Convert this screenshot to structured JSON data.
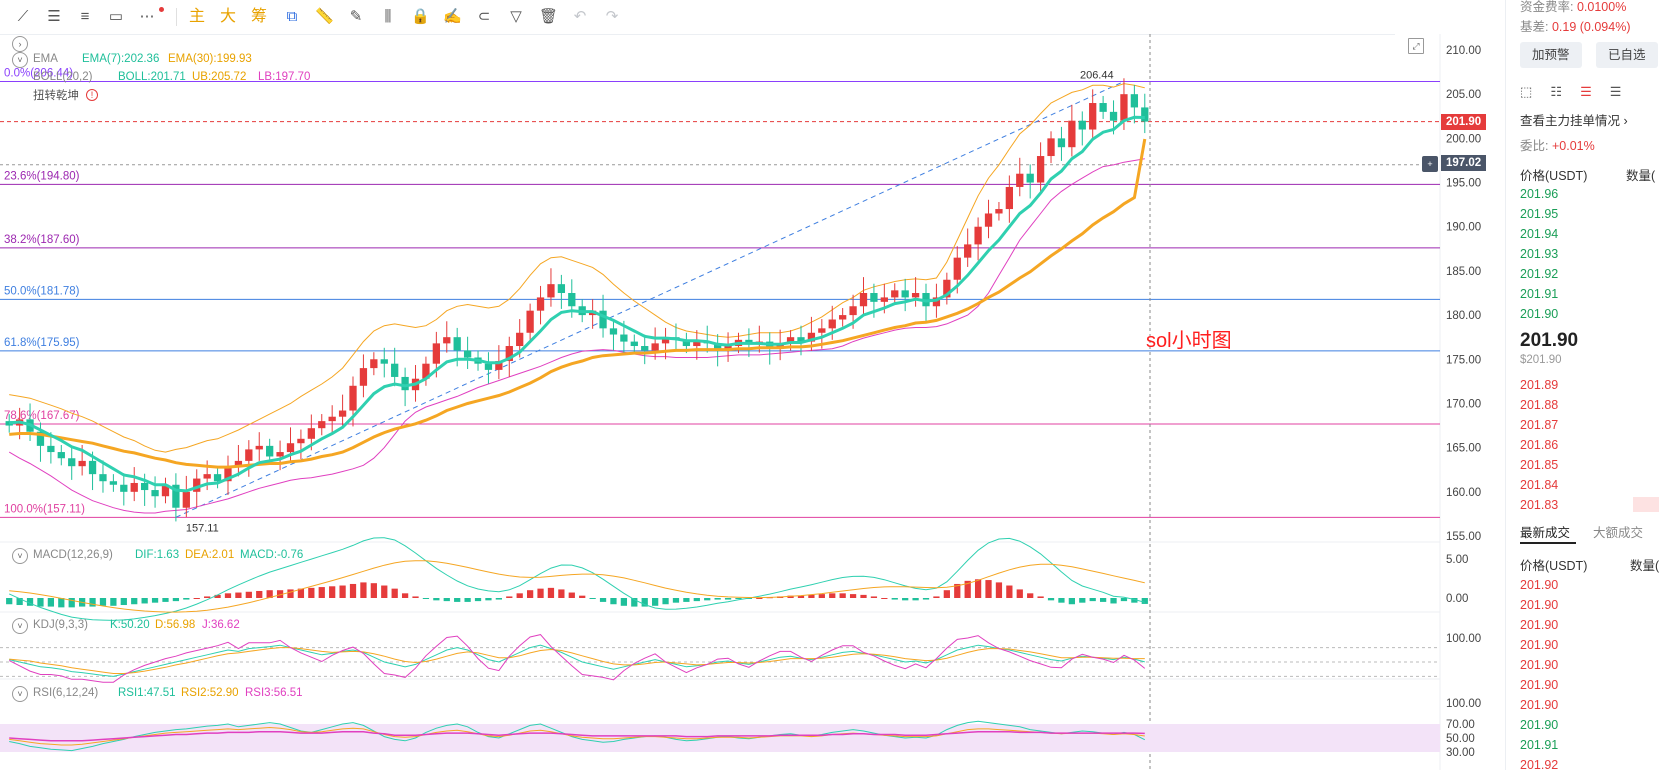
{
  "toolbar": {
    "tools": [
      {
        "name": "trend-line-icon",
        "glyph": "⟋"
      },
      {
        "name": "horizontal-lines-icon",
        "glyph": "☰"
      },
      {
        "name": "parallel-lines-icon",
        "glyph": "≡"
      },
      {
        "name": "rectangle-icon",
        "glyph": "▭"
      },
      {
        "name": "more-icon",
        "glyph": "⋯"
      }
    ],
    "main_label": "主",
    "big_label": "大",
    "chip_label": "筹",
    "right_tools": [
      {
        "name": "copy-icon",
        "glyph": "⧉"
      },
      {
        "name": "ruler-icon",
        "glyph": "📏"
      },
      {
        "name": "pen-icon",
        "glyph": "✎"
      },
      {
        "name": "candles-icon",
        "glyph": "⫼"
      },
      {
        "name": "lock-icon",
        "glyph": "🔒"
      },
      {
        "name": "edit-icon",
        "glyph": "✍"
      },
      {
        "name": "magnet-icon",
        "glyph": "⊂"
      },
      {
        "name": "filter-icon",
        "glyph": "▽"
      },
      {
        "name": "trash-icon",
        "glyph": "🗑"
      },
      {
        "name": "undo-icon",
        "glyph": "↶"
      },
      {
        "name": "redo-icon",
        "glyph": "↷"
      }
    ]
  },
  "indicators": {
    "ema_title": "EMA",
    "ema7": "EMA(7):202.36",
    "ema30": "EMA(30):199.93",
    "boll_title": "BOLL(20,2)",
    "boll_mid": "BOLL:201.71",
    "boll_ub": "UB:205.72",
    "boll_lb": "LB:197.70",
    "signal": "扭转乾坤",
    "macd_title": "MACD(12,26,9)",
    "macd_dif": "DIF:1.63",
    "macd_dea": "DEA:2.01",
    "macd_val": "MACD:-0.76",
    "kdj_title": "KDJ(9,3,3)",
    "kdj_k": "K:50.20",
    "kdj_d": "D:56.98",
    "kdj_j": "J:36.62",
    "rsi_title": "RSI(6,12,24)",
    "rsi1": "RSI1:47.51",
    "rsi2": "RSI2:52.90",
    "rsi3": "RSI3:56.51"
  },
  "fib_levels": [
    {
      "label": "0.0%(206.44)",
      "price": 206.44,
      "color": "#8a3ffc"
    },
    {
      "label": "23.6%(194.80)",
      "price": 194.8,
      "color": "#9c27b0"
    },
    {
      "label": "38.2%(187.60)",
      "price": 187.6,
      "color": "#9c27b0"
    },
    {
      "label": "50.0%(181.78)",
      "price": 181.78,
      "color": "#3f7fe0"
    },
    {
      "label": "61.8%(175.95)",
      "price": 175.95,
      "color": "#3f7fe0"
    },
    {
      "label": "78.6%(167.67)",
      "price": 167.67,
      "color": "#e040a0"
    },
    {
      "label": "100.0%(157.11)",
      "price": 157.11,
      "color": "#e040a0"
    }
  ],
  "high_label": "206.44",
  "low_label": "157.11",
  "annotation": "sol小时图",
  "current_price_badge": "201.90",
  "crosshair_price_badge": "197.02",
  "price_ticks": [
    "210.00",
    "205.00",
    "200.00",
    "195.00",
    "190.00",
    "185.00",
    "180.00",
    "175.00",
    "170.00",
    "165.00",
    "160.00",
    "155.00"
  ],
  "macd_ticks": [
    "5.00",
    "0.00"
  ],
  "kdj_ticks": [
    "100.00"
  ],
  "rsi_ticks": [
    "100.00",
    "70.00",
    "50.00",
    "30.00"
  ],
  "colors": {
    "up": "#e53b3b",
    "down": "#1fbf9a",
    "ema7": "#2fd0b0",
    "ema30": "#f5a623",
    "boll_mid": "#2fc6b6",
    "boll_ub": "#f5a623",
    "boll_lb": "#e040c0"
  },
  "chart_data": {
    "type": "line",
    "x_count": 110,
    "ylim": [
      155,
      211
    ],
    "close": [
      167.5,
      168.2,
      166.8,
      165.2,
      164.5,
      163.8,
      162.9,
      163.5,
      162.0,
      161.2,
      160.8,
      160.0,
      161.0,
      160.2,
      159.5,
      160.8,
      158.2,
      160.0,
      161.5,
      162.0,
      161.2,
      162.8,
      163.5,
      164.8,
      165.2,
      164.0,
      164.5,
      165.5,
      166.0,
      167.2,
      168.0,
      168.5,
      169.2,
      172.0,
      174.0,
      175.0,
      174.5,
      173.0,
      171.5,
      172.8,
      174.5,
      176.8,
      177.5,
      176.0,
      175.2,
      174.5,
      173.8,
      174.8,
      176.5,
      178.0,
      180.5,
      182.0,
      183.5,
      182.5,
      181.0,
      180.0,
      180.5,
      178.5,
      177.8,
      177.0,
      176.5,
      176.0,
      176.8,
      177.5,
      177.2,
      176.5,
      177.0,
      176.8,
      176.0,
      176.5,
      177.2,
      176.8,
      177.0,
      176.2,
      176.8,
      177.5,
      177.0,
      178.0,
      178.5,
      179.5,
      180.0,
      181.0,
      182.5,
      181.5,
      182.0,
      182.8,
      182.0,
      182.5,
      181.0,
      182.0,
      184.0,
      186.5,
      188.0,
      190.0,
      191.5,
      192.0,
      194.5,
      196.0,
      195.0,
      198.0,
      200.0,
      199.0,
      202.0,
      201.0,
      204.0,
      203.0,
      202.0,
      205.0,
      203.5,
      201.9
    ],
    "ema7": [
      167.8,
      167.9,
      167.6,
      167.0,
      166.4,
      165.8,
      165.1,
      164.7,
      164.0,
      163.3,
      162.6,
      161.9,
      161.7,
      161.3,
      160.8,
      160.8,
      160.2,
      160.1,
      160.5,
      160.9,
      161.0,
      161.5,
      162.0,
      162.7,
      163.3,
      163.5,
      163.7,
      164.2,
      164.6,
      165.3,
      166.0,
      166.6,
      167.3,
      168.5,
      169.8,
      171.1,
      171.9,
      172.2,
      172.0,
      172.2,
      172.8,
      173.8,
      174.7,
      175.0,
      175.0,
      174.9,
      174.6,
      174.6,
      175.1,
      175.8,
      177.0,
      178.2,
      179.5,
      180.3,
      180.5,
      180.4,
      180.4,
      179.9,
      179.4,
      178.8,
      178.2,
      177.6,
      177.4,
      177.4,
      177.3,
      177.1,
      177.1,
      177.0,
      176.7,
      176.6,
      176.8,
      176.8,
      176.8,
      176.7,
      176.7,
      176.9,
      176.9,
      177.2,
      177.5,
      178.0,
      178.5,
      179.1,
      180.0,
      180.4,
      180.8,
      181.3,
      181.5,
      181.8,
      181.6,
      181.7,
      182.3,
      183.3,
      184.5,
      185.9,
      187.3,
      188.5,
      190.0,
      191.5,
      192.4,
      193.8,
      195.4,
      196.3,
      197.7,
      198.5,
      199.9,
      200.7,
      201.0,
      202.0,
      202.4,
      202.36
    ],
    "ema30": [
      166.5,
      166.6,
      166.6,
      166.5,
      166.3,
      166.1,
      165.9,
      165.7,
      165.5,
      165.2,
      164.9,
      164.6,
      164.4,
      164.1,
      163.8,
      163.6,
      163.3,
      163.1,
      163.0,
      162.9,
      162.8,
      162.8,
      162.9,
      163.0,
      163.1,
      163.2,
      163.2,
      163.4,
      163.5,
      163.7,
      164.0,
      164.2,
      164.5,
      165.0,
      165.6,
      166.2,
      166.7,
      167.1,
      167.4,
      167.7,
      168.1,
      168.6,
      169.2,
      169.6,
      170.0,
      170.3,
      170.6,
      170.9,
      171.3,
      171.8,
      172.3,
      172.9,
      173.6,
      174.1,
      174.5,
      174.8,
      175.2,
      175.4,
      175.5,
      175.6,
      175.7,
      175.7,
      175.8,
      175.9,
      176.0,
      176.0,
      176.1,
      176.1,
      176.1,
      176.1,
      176.2,
      176.2,
      176.3,
      176.3,
      176.3,
      176.4,
      176.4,
      176.5,
      176.7,
      176.9,
      177.1,
      177.4,
      177.7,
      178.0,
      178.3,
      178.6,
      178.8,
      179.1,
      179.2,
      179.4,
      179.8,
      180.2,
      180.7,
      181.3,
      182.0,
      182.6,
      183.4,
      184.2,
      184.9,
      185.8,
      186.7,
      187.5,
      188.4,
      189.2,
      190.2,
      191.0,
      191.7,
      192.6,
      193.3,
      199.93
    ],
    "boll_ub": [
      171.0,
      170.8,
      170.6,
      170.2,
      169.8,
      169.4,
      168.9,
      168.5,
      168.0,
      167.4,
      166.8,
      166.2,
      165.8,
      165.2,
      164.7,
      164.5,
      164.8,
      165.0,
      165.4,
      165.8,
      166.0,
      166.5,
      167.0,
      167.6,
      168.2,
      168.8,
      169.4,
      170.0,
      170.8,
      171.5,
      172.2,
      173.0,
      174.0,
      175.5,
      177.0,
      178.2,
      178.8,
      179.0,
      178.8,
      178.6,
      178.8,
      179.5,
      180.5,
      181.0,
      181.2,
      181.0,
      180.8,
      181.0,
      181.8,
      183.0,
      184.5,
      185.8,
      186.5,
      186.6,
      186.2,
      185.8,
      185.4,
      184.6,
      183.5,
      182.5,
      181.6,
      180.8,
      180.0,
      179.2,
      178.6,
      178.2,
      178.0,
      177.8,
      177.6,
      177.5,
      177.6,
      177.8,
      178.0,
      178.0,
      178.0,
      178.2,
      178.6,
      179.2,
      179.8,
      180.6,
      181.4,
      182.0,
      182.8,
      183.2,
      183.5,
      183.8,
      184.0,
      184.1,
      184.0,
      184.2,
      186.0,
      188.5,
      191.0,
      193.5,
      195.5,
      197.0,
      198.8,
      200.5,
      201.5,
      202.8,
      204.0,
      204.6,
      205.2,
      205.5,
      206.0,
      206.0,
      205.8,
      206.2,
      206.0,
      205.72
    ],
    "boll_lb": [
      164.5,
      163.8,
      163.2,
      162.5,
      161.8,
      161.0,
      160.2,
      159.6,
      159.0,
      158.6,
      158.2,
      157.9,
      157.7,
      157.6,
      157.6,
      157.8,
      157.9,
      158.0,
      158.3,
      158.6,
      158.9,
      159.2,
      159.6,
      160.0,
      160.4,
      160.7,
      161.0,
      161.3,
      161.5,
      161.6,
      161.8,
      162.0,
      162.3,
      162.6,
      163.0,
      163.8,
      165.0,
      166.5,
      168.0,
      169.0,
      169.6,
      170.0,
      170.4,
      170.8,
      171.3,
      171.8,
      172.2,
      172.6,
      173.0,
      173.4,
      173.8,
      174.2,
      174.7,
      175.2,
      175.6,
      175.9,
      176.0,
      176.1,
      176.0,
      175.8,
      175.6,
      175.4,
      175.3,
      175.3,
      175.2,
      175.2,
      175.2,
      175.2,
      175.3,
      175.4,
      175.5,
      175.5,
      175.5,
      175.6,
      175.7,
      175.8,
      175.9,
      176.0,
      176.1,
      176.2,
      176.5,
      177.0,
      177.4,
      177.7,
      178.0,
      178.3,
      178.5,
      178.6,
      178.6,
      178.7,
      179.0,
      179.5,
      180.0,
      181.0,
      182.5,
      184.5,
      186.5,
      188.5,
      190.0,
      191.5,
      193.0,
      194.0,
      194.8,
      195.5,
      196.2,
      196.8,
      197.0,
      197.3,
      197.5,
      197.7
    ],
    "macd_hist": [
      -0.8,
      -0.9,
      -1.0,
      -1.1,
      -1.1,
      -1.2,
      -1.2,
      -1.1,
      -1.1,
      -1.0,
      -1.0,
      -0.9,
      -0.8,
      -0.7,
      -0.6,
      -0.5,
      -0.4,
      -0.2,
      0.0,
      0.2,
      0.4,
      0.6,
      0.7,
      0.8,
      0.9,
      1.0,
      1.0,
      1.1,
      1.2,
      1.3,
      1.4,
      1.5,
      1.6,
      1.8,
      2.0,
      1.9,
      1.6,
      1.2,
      0.6,
      0.2,
      -0.1,
      -0.3,
      -0.4,
      -0.5,
      -0.5,
      -0.4,
      -0.3,
      -0.2,
      0.2,
      0.6,
      1.0,
      1.2,
      1.3,
      1.1,
      0.7,
      0.3,
      -0.1,
      -0.5,
      -0.8,
      -1.0,
      -1.1,
      -1.1,
      -1.0,
      -0.8,
      -0.6,
      -0.5,
      -0.4,
      -0.3,
      -0.2,
      -0.2,
      -0.1,
      -0.1,
      0.0,
      0.1,
      0.2,
      0.3,
      0.3,
      0.4,
      0.5,
      0.6,
      0.6,
      0.5,
      0.4,
      0.2,
      0.0,
      -0.2,
      -0.3,
      -0.3,
      -0.2,
      0.2,
      1.0,
      1.8,
      2.2,
      2.4,
      2.3,
      2.0,
      1.6,
      1.1,
      0.6,
      0.2,
      -0.3,
      -0.6,
      -0.8,
      -0.6,
      -0.4,
      -0.5,
      -0.7,
      -0.4,
      -0.6,
      -0.76
    ],
    "kdj_k": [
      55,
      50,
      45,
      40,
      38,
      35,
      30,
      28,
      25,
      22,
      20,
      25,
      30,
      35,
      40,
      45,
      50,
      55,
      60,
      65,
      70,
      75,
      72,
      78,
      80,
      82,
      85,
      80,
      75,
      70,
      65,
      68,
      72,
      75,
      70,
      60,
      50,
      45,
      40,
      45,
      55,
      65,
      75,
      80,
      75,
      65,
      55,
      50,
      60,
      70,
      80,
      85,
      78,
      70,
      60,
      50,
      45,
      40,
      35,
      40,
      45,
      50,
      55,
      50,
      45,
      40,
      42,
      45,
      50,
      52,
      48,
      45,
      50,
      55,
      60,
      62,
      58,
      55,
      60,
      65,
      70,
      72,
      68,
      65,
      60,
      55,
      50,
      52,
      48,
      55,
      65,
      75,
      80,
      85,
      82,
      78,
      75,
      70,
      65,
      60,
      55,
      52,
      58,
      62,
      60,
      58,
      55,
      60,
      56,
      50.2
    ],
    "kdj_d": [
      56,
      54,
      52,
      48,
      45,
      42,
      38,
      35,
      32,
      29,
      26,
      26,
      28,
      31,
      35,
      39,
      44,
      48,
      53,
      58,
      63,
      67,
      69,
      72,
      75,
      78,
      80,
      80,
      78,
      75,
      72,
      70,
      71,
      72,
      71,
      67,
      62,
      56,
      51,
      49,
      51,
      56,
      62,
      68,
      71,
      69,
      64,
      59,
      59,
      63,
      69,
      74,
      76,
      74,
      69,
      63,
      57,
      51,
      46,
      44,
      44,
      46,
      49,
      50,
      48,
      46,
      44,
      45,
      47,
      49,
      49,
      48,
      49,
      51,
      54,
      57,
      57,
      57,
      58,
      60,
      63,
      66,
      67,
      66,
      64,
      61,
      57,
      55,
      53,
      54,
      58,
      64,
      70,
      75,
      78,
      78,
      77,
      74,
      71,
      67,
      63,
      59,
      59,
      60,
      60,
      59,
      58,
      58,
      57,
      56.98
    ],
    "kdj_j": [
      53,
      42,
      31,
      24,
      24,
      21,
      14,
      14,
      11,
      8,
      8,
      23,
      34,
      43,
      50,
      57,
      62,
      69,
      74,
      79,
      84,
      91,
      78,
      90,
      90,
      90,
      95,
      80,
      69,
      60,
      51,
      64,
      74,
      81,
      68,
      46,
      26,
      23,
      18,
      37,
      63,
      83,
      101,
      104,
      83,
      57,
      37,
      32,
      62,
      84,
      102,
      107,
      82,
      62,
      42,
      24,
      21,
      18,
      13,
      32,
      47,
      58,
      67,
      50,
      39,
      28,
      38,
      45,
      56,
      58,
      46,
      39,
      52,
      63,
      72,
      72,
      60,
      51,
      64,
      75,
      84,
      84,
      70,
      63,
      52,
      43,
      36,
      46,
      38,
      57,
      79,
      97,
      100,
      105,
      90,
      78,
      71,
      62,
      53,
      46,
      39,
      38,
      56,
      66,
      60,
      56,
      49,
      64,
      54,
      36.62
    ],
    "rsi1": [
      45,
      42,
      38,
      36,
      34,
      33,
      32,
      35,
      38,
      42,
      45,
      48,
      52,
      55,
      58,
      60,
      62,
      63,
      65,
      67,
      68,
      70,
      66,
      68,
      70,
      72,
      70,
      65,
      60,
      58,
      62,
      66,
      70,
      72,
      68,
      60,
      52,
      48,
      46,
      50,
      58,
      64,
      68,
      70,
      66,
      58,
      52,
      50,
      56,
      62,
      68,
      70,
      64,
      58,
      52,
      48,
      46,
      44,
      45,
      48,
      50,
      52,
      53,
      51,
      48,
      46,
      47,
      49,
      51,
      52,
      50,
      49,
      51,
      53,
      55,
      56,
      54,
      53,
      55,
      58,
      60,
      62,
      60,
      57,
      54,
      52,
      50,
      51,
      50,
      54,
      62,
      68,
      72,
      74,
      72,
      70,
      68,
      66,
      62,
      60,
      58,
      56,
      58,
      60,
      59,
      57,
      55,
      58,
      55,
      47.51
    ],
    "rsi2": [
      48,
      46,
      44,
      42,
      41,
      40,
      40,
      41,
      43,
      45,
      47,
      49,
      51,
      53,
      55,
      57,
      58,
      59,
      60,
      61,
      62,
      63,
      62,
      63,
      64,
      65,
      64,
      62,
      59,
      58,
      59,
      61,
      63,
      64,
      63,
      59,
      55,
      52,
      51,
      52,
      55,
      58,
      60,
      61,
      59,
      56,
      53,
      52,
      54,
      57,
      60,
      61,
      59,
      56,
      53,
      51,
      50,
      49,
      49,
      50,
      51,
      52,
      52,
      51,
      50,
      49,
      49,
      50,
      51,
      51,
      51,
      50,
      51,
      52,
      53,
      53,
      53,
      52,
      53,
      55,
      56,
      57,
      56,
      55,
      54,
      53,
      52,
      52,
      52,
      53,
      56,
      59,
      62,
      63,
      63,
      62,
      61,
      60,
      59,
      58,
      57,
      56,
      57,
      57,
      57,
      56,
      55,
      56,
      55,
      52.9
    ],
    "rsi3": [
      50,
      49,
      48,
      47,
      46,
      46,
      46,
      46,
      47,
      48,
      49,
      50,
      51,
      52,
      53,
      54,
      55,
      55,
      56,
      57,
      57,
      58,
      58,
      58,
      59,
      59,
      59,
      58,
      57,
      57,
      57,
      58,
      59,
      59,
      59,
      57,
      56,
      54,
      54,
      54,
      55,
      56,
      57,
      57,
      57,
      56,
      55,
      54,
      55,
      56,
      57,
      57,
      57,
      56,
      55,
      54,
      53,
      53,
      53,
      53,
      53,
      53,
      53,
      53,
      53,
      52,
      52,
      52,
      53,
      53,
      53,
      53,
      53,
      53,
      54,
      54,
      54,
      54,
      54,
      55,
      55,
      56,
      56,
      55,
      55,
      55,
      54,
      54,
      54,
      55,
      56,
      57,
      58,
      59,
      59,
      59,
      59,
      58,
      58,
      58,
      57,
      57,
      57,
      57,
      57,
      57,
      57,
      57,
      57,
      56.51
    ]
  },
  "sidebar": {
    "funding_label": "资金费率:",
    "funding_value": "0.0100%",
    "basis_label": "基差:",
    "basis_value": "0.19 (0.094%)",
    "add_alert": "加预警",
    "watchlist": "已自选",
    "depth_link": "查看主力挂单情况 ›",
    "ratio_label": "委比:",
    "ratio_value": "+0.01%",
    "col_price": "价格(USDT)",
    "col_qty": "数量(",
    "asks": [
      "201.96",
      "201.95",
      "201.94",
      "201.93",
      "201.92",
      "201.91",
      "201.90"
    ],
    "last_price": "201.90",
    "last_usd": "$201.90",
    "bids": [
      "201.89",
      "201.88",
      "201.87",
      "201.86",
      "201.85",
      "201.84",
      "201.83"
    ],
    "trades_tab": "最新成交",
    "big_trades_tab": "大额成交",
    "trades_col_price": "价格(USDT)",
    "trades_col_qty": "数量(",
    "trades": [
      {
        "p": "201.90",
        "c": "red"
      },
      {
        "p": "201.90",
        "c": "red"
      },
      {
        "p": "201.90",
        "c": "red"
      },
      {
        "p": "201.90",
        "c": "red"
      },
      {
        "p": "201.90",
        "c": "red"
      },
      {
        "p": "201.90",
        "c": "red"
      },
      {
        "p": "201.90",
        "c": "red"
      },
      {
        "p": "201.90",
        "c": "green"
      },
      {
        "p": "201.91",
        "c": "green"
      },
      {
        "p": "201.92",
        "c": "red"
      }
    ]
  }
}
